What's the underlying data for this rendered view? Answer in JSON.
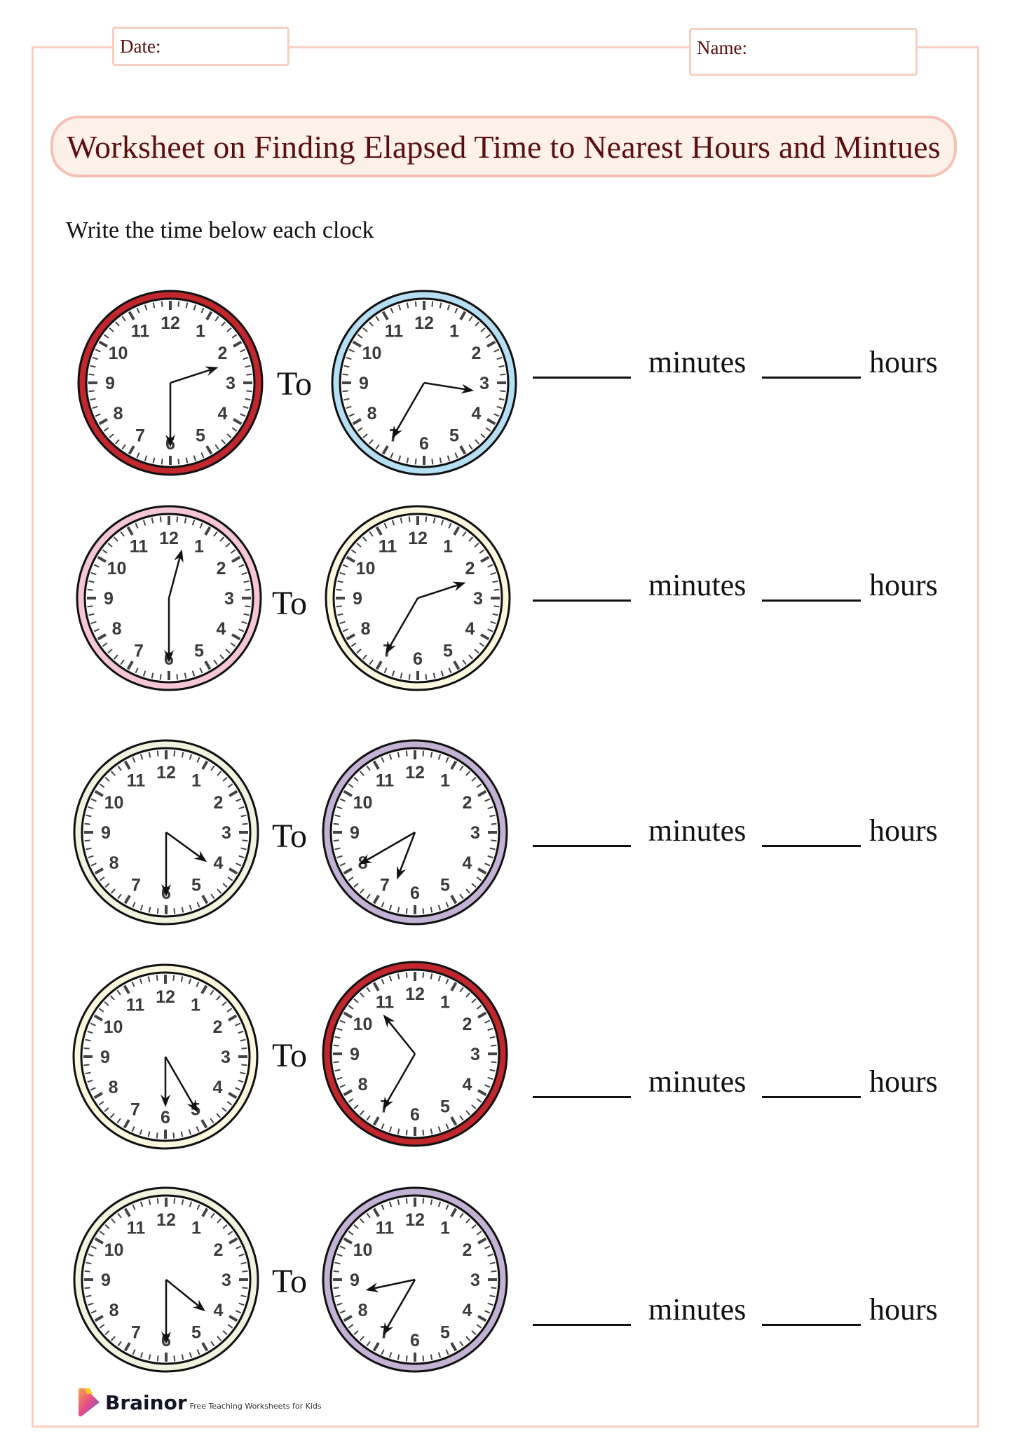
{
  "header": {
    "date_label": "Date:",
    "name_label": "Name:"
  },
  "title": "Worksheet on Finding Elapsed Time to Nearest Hours and Mintues",
  "instruction": "Write the time below each clock",
  "connector": "To",
  "answer_labels": {
    "minutes": "minutes",
    "hours": "hours"
  },
  "clock_numbers": [
    "12",
    "1",
    "2",
    "3",
    "4",
    "5",
    "6",
    "7",
    "8",
    "9",
    "10",
    "11"
  ],
  "rows": [
    {
      "start": {
        "rim_color": "#c1272d",
        "hour_hand": 2.4,
        "minute_hand": 6.0
      },
      "end": {
        "rim_color": "#b5dff5",
        "hour_hand": 3.3,
        "minute_hand": 7.0
      }
    },
    {
      "start": {
        "rim_color": "#f6c6d8",
        "hour_hand": 12.5,
        "minute_hand": 6.0
      },
      "end": {
        "rim_color": "#fbf8de",
        "hour_hand": 2.4,
        "minute_hand": 7.0
      }
    },
    {
      "start": {
        "rim_color": "#eef4dd",
        "hour_hand": 4.2,
        "minute_hand": 6.0
      },
      "end": {
        "rim_color": "#c4b2d6",
        "hour_hand": 6.7,
        "minute_hand": 8.0
      }
    },
    {
      "start": {
        "rim_color": "#fbf8de",
        "hour_hand": 6.0,
        "minute_hand": 5.0
      },
      "end": {
        "rim_color": "#c1272d",
        "hour_hand": 10.7,
        "minute_hand": 7.0
      }
    },
    {
      "start": {
        "rim_color": "#eef4dd",
        "hour_hand": 4.3,
        "minute_hand": 6.0
      },
      "end": {
        "rim_color": "#c4b2d6",
        "hour_hand": 8.6,
        "minute_hand": 7.0
      }
    }
  ],
  "footer": {
    "brand": "Brainor",
    "tagline": "Free Teaching Worksheets for Kids"
  }
}
